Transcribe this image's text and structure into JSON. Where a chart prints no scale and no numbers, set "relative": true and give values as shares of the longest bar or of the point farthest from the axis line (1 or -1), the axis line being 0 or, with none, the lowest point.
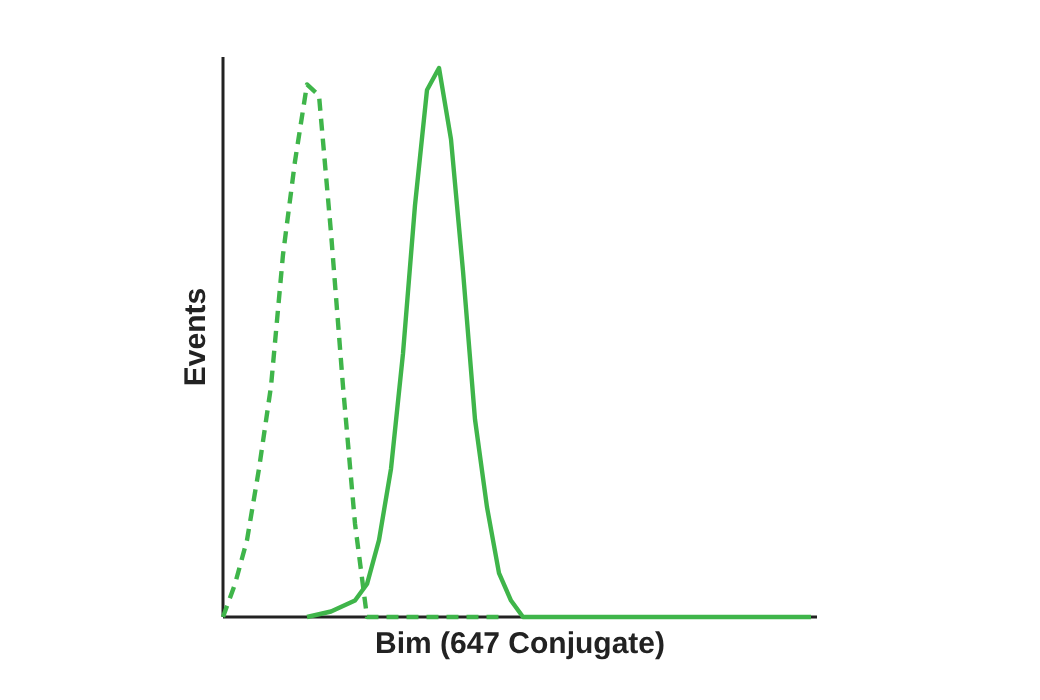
{
  "chart_data": {
    "type": "line",
    "relative": true,
    "ylabel": "Events",
    "xlabel": "Bim (647 Conjugate)",
    "categories": [
      null,
      null,
      null,
      null,
      null,
      null,
      null,
      null,
      null,
      null,
      null,
      null,
      null,
      null,
      null,
      null,
      null,
      null,
      null,
      null,
      null,
      null,
      null,
      null,
      null,
      null,
      null,
      null,
      null,
      null,
      null,
      null,
      null,
      null,
      null,
      null,
      null,
      null,
      null,
      null,
      null,
      null,
      null,
      null,
      null,
      null,
      null,
      null,
      null,
      null
    ],
    "series": [
      {
        "color": "#3fb54a",
        "line_style": "dashed",
        "values": [
          0,
          0.06,
          0.14,
          0.27,
          0.42,
          0.66,
          0.83,
          0.97,
          0.95,
          0.7,
          0.42,
          0.17,
          0,
          0,
          0,
          0,
          0,
          0,
          0,
          0,
          0,
          0,
          0,
          0,
          null,
          null,
          null,
          null,
          null,
          null,
          null,
          null,
          null,
          null,
          null,
          null,
          null,
          null,
          null,
          null,
          null,
          null,
          null,
          null,
          null,
          null,
          null,
          null,
          null,
          null
        ]
      },
      {
        "color": "#3fb54a",
        "line_style": "solid",
        "values": [
          null,
          null,
          null,
          null,
          null,
          null,
          null,
          0,
          0.005,
          0.01,
          0.02,
          0.03,
          0.06,
          0.14,
          0.27,
          0.48,
          0.75,
          0.96,
          1.0,
          0.87,
          0.63,
          0.36,
          0.2,
          0.08,
          0.03,
          0,
          0,
          0,
          0,
          0,
          0,
          0,
          0,
          0,
          0,
          0,
          0,
          0,
          0,
          0,
          0,
          0,
          0,
          0,
          0,
          0,
          0,
          0,
          0,
          0
        ]
      }
    ]
  }
}
